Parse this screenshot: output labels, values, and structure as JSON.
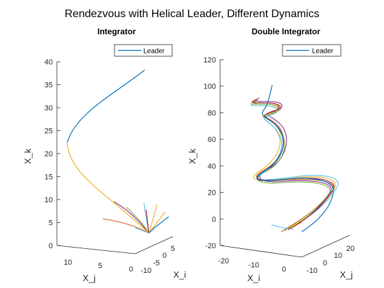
{
  "figure": {
    "suptitle": "Rendezvous with Helical Leader, Different Dynamics"
  },
  "colors": {
    "leader": "#0072BD",
    "followers": [
      "#D95319",
      "#EDB120",
      "#7E2F8E",
      "#77AC30",
      "#4DBEEE",
      "#A2142F"
    ]
  },
  "chart_data": [
    {
      "type": "line",
      "title": "Integrator",
      "zlabel": "X_k",
      "xlabel": "X_j",
      "ylabel": "X_i",
      "zticks": [
        "0",
        "5",
        "10",
        "15",
        "20",
        "25",
        "30",
        "35",
        "40"
      ],
      "zlim": [
        0,
        40
      ],
      "xticks": [
        "10",
        "5",
        "0"
      ],
      "yticks": [
        "-10",
        "-5",
        "0",
        "5"
      ],
      "legend": {
        "entries": [
          "Leader"
        ],
        "location": "top-right"
      },
      "series": [
        {
          "name": "Leader",
          "color": "#0072BD",
          "z": [
            3,
            6,
            10,
            14,
            18,
            22,
            25,
            28,
            31,
            34,
            37,
            38.5
          ],
          "dx": [
            0,
            0.5,
            0.7,
            0.5,
            0.2,
            0,
            -0.1,
            -0.2,
            -0.3,
            -0.4,
            -0.5,
            -0.55
          ]
        }
      ]
    },
    {
      "type": "line",
      "title": "Double Integrator",
      "zlabel": "X_k",
      "xlabel": "X_i",
      "ylabel": "X_j",
      "zticks": [
        "-20",
        "0",
        "20",
        "40",
        "60",
        "80",
        "100",
        "120"
      ],
      "zlim": [
        -20,
        120
      ],
      "xticks": [
        "-20",
        "-10",
        "0"
      ],
      "yticks": [
        "-10",
        "0",
        "10",
        "20"
      ],
      "legend": {
        "entries": [
          "Leader"
        ],
        "location": "top-right"
      },
      "series": [
        {
          "name": "Leader",
          "color": "#0072BD",
          "z": [
            -5,
            5,
            15,
            25,
            30,
            35,
            40,
            45,
            55,
            65,
            75,
            85,
            95,
            101
          ],
          "dx": [
            0,
            0.7,
            1,
            0.5,
            -0.2,
            -0.5,
            -0.3,
            0.2,
            0.5,
            0.3,
            -0.1,
            -0.3,
            -0.1,
            0.2
          ]
        }
      ]
    }
  ]
}
